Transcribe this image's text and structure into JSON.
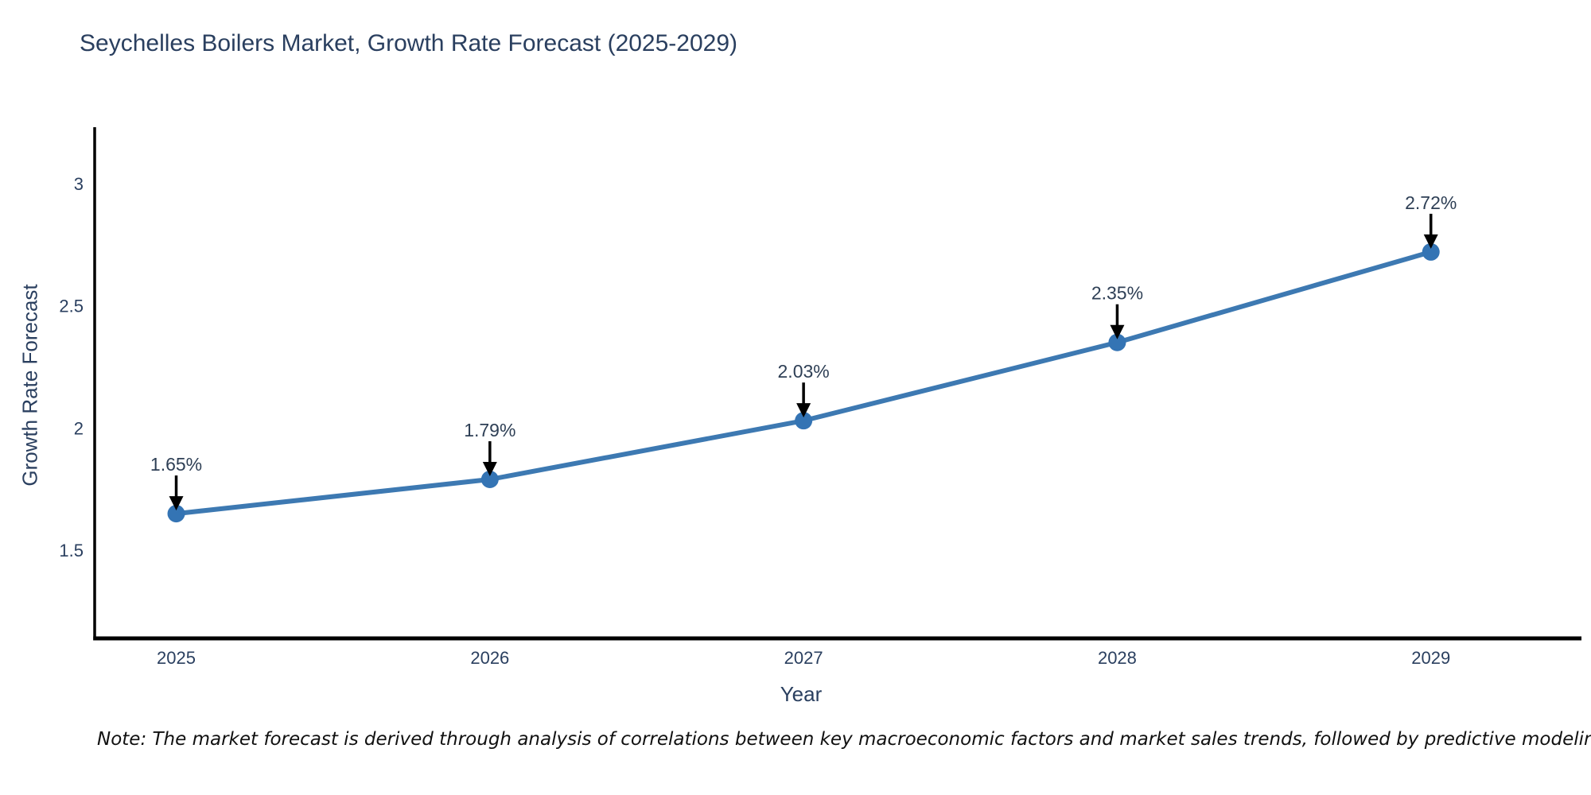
{
  "chart_data": {
    "type": "line",
    "title": "Seychelles Boilers Market, Growth Rate Forecast (2025-2029)",
    "xlabel": "Year",
    "ylabel": "Growth Rate Forecast",
    "note": "Note: The market forecast is derived through analysis of correlations between key macroeconomic factors and market sales trends, followed by predictive modeling to project future sales",
    "x": [
      2025,
      2026,
      2027,
      2028,
      2029
    ],
    "series": [
      {
        "name": "Growth Rate Forecast",
        "values": [
          1.65,
          1.79,
          2.03,
          2.35,
          2.72
        ]
      }
    ],
    "point_labels": [
      "1.65%",
      "1.79%",
      "2.03%",
      "2.35%",
      "2.72%"
    ],
    "xticks": [
      "2025",
      "2026",
      "2027",
      "2028",
      "2029"
    ],
    "ytick_values": [
      1.5,
      2,
      2.5,
      3
    ],
    "ytick_labels": [
      "1.5",
      "2",
      "2.5",
      "3"
    ],
    "xlim": [
      2024.74,
      2029.48
    ],
    "ylim": [
      1.14,
      3.23
    ],
    "grid": false,
    "legend_position": "none",
    "annotation_style": "arrow-down-to-point",
    "colors": {
      "line": "#3d79b2",
      "marker": "#3474b4",
      "axis": "#000000",
      "tick_text": "#2a3f5f",
      "title_text": "#2a3f5f",
      "annotation_text": "#2e3f55",
      "arrow": "#000000",
      "note_text": "#111111",
      "background": "#ffffff"
    }
  }
}
